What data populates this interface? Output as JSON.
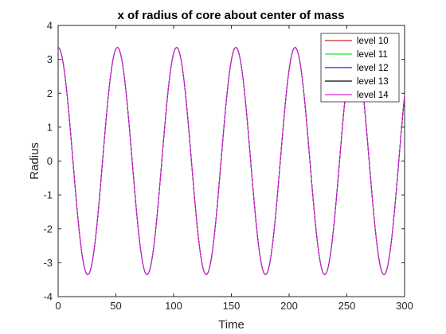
{
  "chart_data": {
    "type": "line",
    "title": "x of radius of core about center of mass",
    "xlabel": "Time",
    "ylabel": "Radius",
    "xlim": [
      0,
      300
    ],
    "ylim": [
      -4,
      4
    ],
    "xticks": [
      0,
      50,
      100,
      150,
      200,
      250,
      300
    ],
    "yticks": [
      -4,
      -3,
      -2,
      -1,
      0,
      1,
      2,
      3,
      4
    ],
    "grid": false,
    "legend_position": "top-right",
    "signal": {
      "form": "cosine",
      "amplitude": 3.35,
      "period": 51.3,
      "phase": 0,
      "x_start": 0,
      "x_end": 300
    },
    "series": [
      {
        "name": "level 10",
        "color": "#d62020"
      },
      {
        "name": "level 11",
        "color": "#22dd22"
      },
      {
        "name": "level 12",
        "color": "#2424c8"
      },
      {
        "name": "level 13",
        "color": "#000000"
      },
      {
        "name": "level 14",
        "color": "#dd22dd"
      }
    ]
  }
}
